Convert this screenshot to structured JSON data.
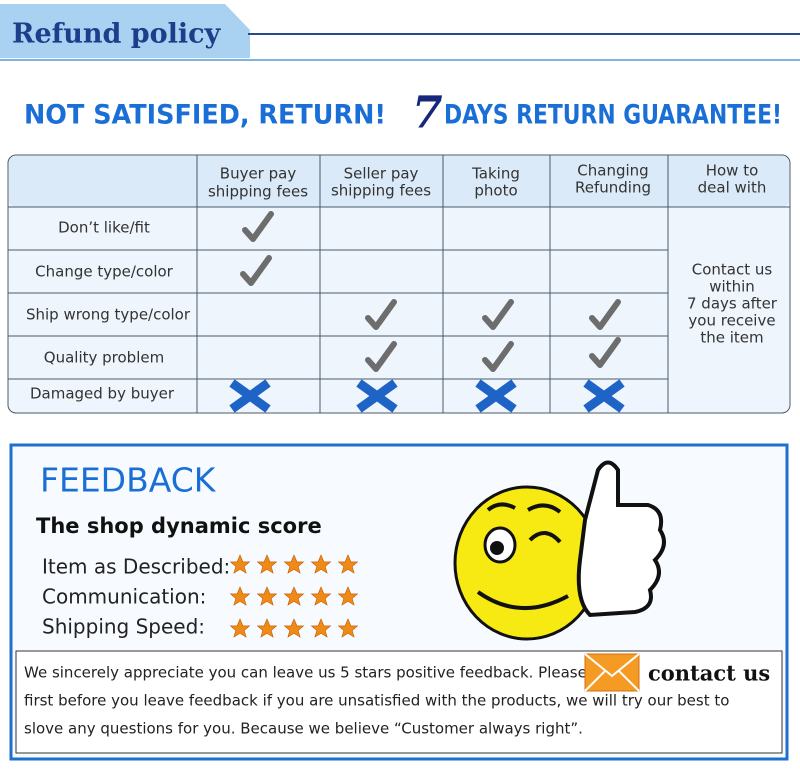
{
  "header": {
    "title": "Refund policy"
  },
  "banner": {
    "left": "NOT SATISFIED, RETURN!",
    "number": "7",
    "right": "DAYS RETURN GUARANTEE!"
  },
  "table": {
    "columns": [
      [
        "Buyer pay",
        "shipping fees"
      ],
      [
        "Seller pay",
        "shipping fees"
      ],
      [
        "Taking",
        "photo"
      ],
      [
        "Changing",
        "Refunding"
      ],
      [
        "How to",
        "deal with"
      ]
    ],
    "rows": [
      "Don’t like/fit",
      "Change type/color",
      "Ship wrong type/color",
      "Quality problem",
      "Damaged by buyer"
    ],
    "action": [
      "Contact us",
      "within",
      "7 days after",
      "you receive",
      "the item"
    ]
  },
  "feedback": {
    "title": "FEEDBACK",
    "subtitle": "The shop dynamic score",
    "items": [
      "Item as Described:",
      "Communication:",
      "Shipping Speed:"
    ],
    "message": [
      "We sincerely appreciate you can leave us 5 stars positive feedback. Please",
      "first before you leave feedback if you are unsatisfied with the products, we will try our best to",
      "slove any questions for you. Because we believe “Customer always right”."
    ],
    "contact": "contact us"
  }
}
